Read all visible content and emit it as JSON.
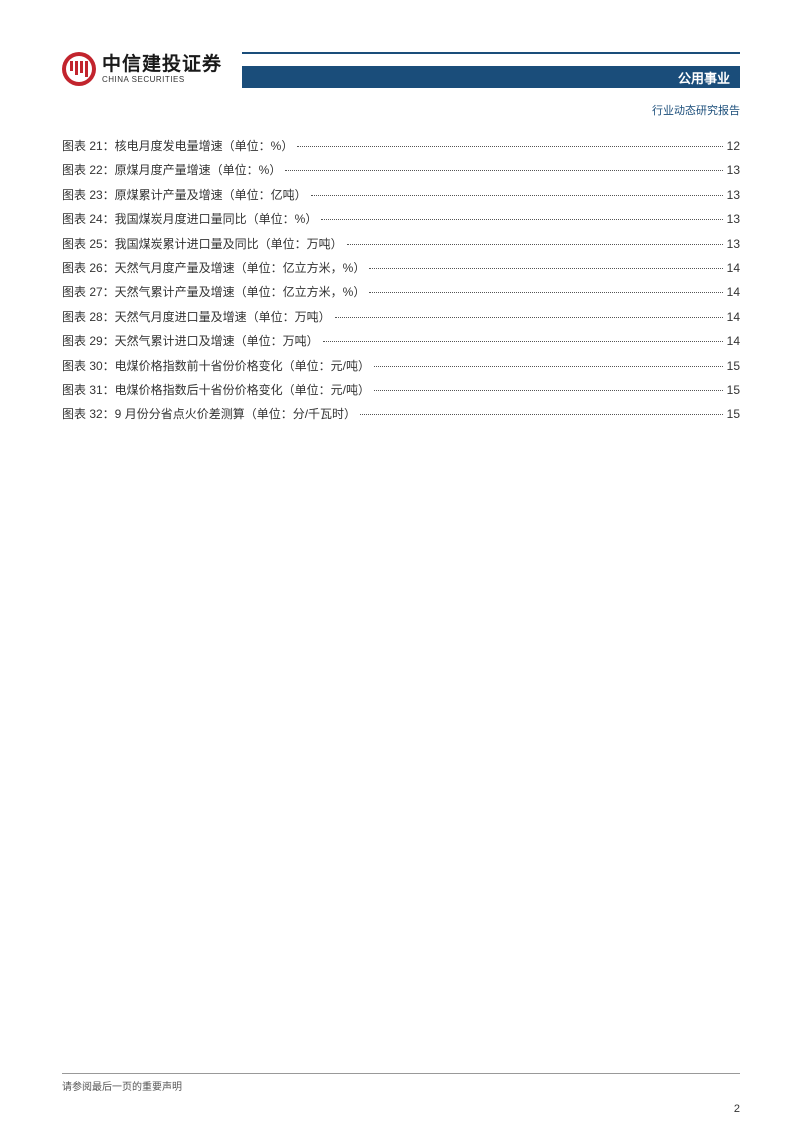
{
  "logo": {
    "cn": "中信建投证券",
    "en": "CHINA SECURITIES"
  },
  "header": {
    "category": "公用事业",
    "subtitle": "行业动态研究报告"
  },
  "toc": [
    {
      "label": "图表 21：核电月度发电量增速（单位：%）",
      "page": "12"
    },
    {
      "label": "图表 22：原煤月度产量增速（单位：%）",
      "page": "13"
    },
    {
      "label": "图表 23：原煤累计产量及增速（单位：亿吨）",
      "page": "13"
    },
    {
      "label": "图表 24：我国煤炭月度进口量同比（单位：%）",
      "page": "13"
    },
    {
      "label": "图表 25：我国煤炭累计进口量及同比（单位：万吨）",
      "page": "13"
    },
    {
      "label": "图表 26：天然气月度产量及增速（单位：亿立方米，%）",
      "page": "14"
    },
    {
      "label": "图表 27：天然气累计产量及增速（单位：亿立方米，%）",
      "page": "14"
    },
    {
      "label": "图表 28：天然气月度进口量及增速（单位：万吨）",
      "page": "14"
    },
    {
      "label": "图表 29：天然气累计进口及增速（单位：万吨）",
      "page": "14"
    },
    {
      "label": "图表 30：电煤价格指数前十省份价格变化（单位：元/吨）",
      "page": "15"
    },
    {
      "label": "图表 31：电煤价格指数后十省份价格变化（单位：元/吨）",
      "page": "15"
    },
    {
      "label": "图表 32：9 月份分省点火价差测算（单位：分/千瓦时）",
      "page": "15"
    }
  ],
  "footer": {
    "disclaimer": "请参阅最后一页的重要声明",
    "page_number": "2"
  },
  "colors": {
    "brand_red": "#c2242d",
    "brand_blue": "#1a4d7a",
    "text_dark": "#333333",
    "text_gray": "#555555",
    "line_gray": "#999999",
    "background": "#ffffff"
  }
}
